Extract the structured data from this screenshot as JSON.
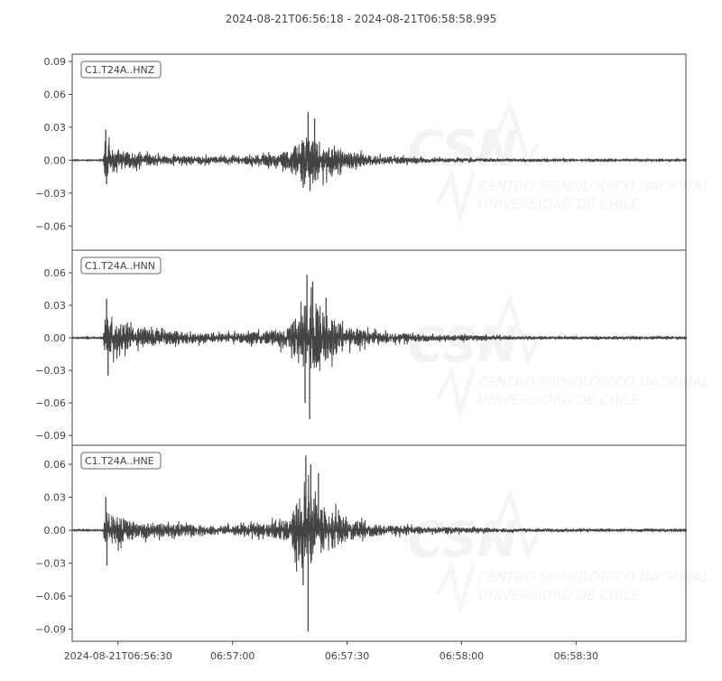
{
  "chart_data": {
    "type": "line",
    "title": "2024-08-21T06:56:18  -  2024-08-21T06:58:58.995",
    "x_start": "2024-08-21T06:56:18",
    "x_end": "2024-08-21T06:58:58.995",
    "x_duration_s": 160.995,
    "x_ticks": [
      {
        "t": 12,
        "label": "2024-08-21T06:56:30"
      },
      {
        "t": 42,
        "label": "06:57:00"
      },
      {
        "t": 72,
        "label": "06:57:30"
      },
      {
        "t": 102,
        "label": "06:58:00"
      },
      {
        "t": 132,
        "label": "06:58:30"
      }
    ],
    "grid": false,
    "line_color": "#444444",
    "watermark": {
      "logo": "CSN",
      "line1": "CENTRO SISMOLÓGICO NACIONAL",
      "line2": "UNIVERSIDAD DE CHILE"
    },
    "series": [
      {
        "name": "C1.T24A..HNZ",
        "ylim": [
          -0.082,
          0.0966
        ],
        "y_ticks": [
          {
            "v": 0.09,
            "label": "0.09"
          },
          {
            "v": 0.06,
            "label": "0.06"
          },
          {
            "v": 0.03,
            "label": "0.03"
          },
          {
            "v": 0.0,
            "label": "0.00"
          },
          {
            "v": -0.03,
            "label": "−0.03"
          },
          {
            "v": -0.06,
            "label": "−0.06"
          }
        ],
        "envelope": [
          [
            0,
            0.0005
          ],
          [
            8,
            0.0005
          ],
          [
            8.6,
            0.02
          ],
          [
            10,
            0.012
          ],
          [
            15,
            0.007
          ],
          [
            25,
            0.004
          ],
          [
            40,
            0.003
          ],
          [
            50,
            0.005
          ],
          [
            57,
            0.008
          ],
          [
            60,
            0.02
          ],
          [
            62,
            0.024
          ],
          [
            66,
            0.014
          ],
          [
            72,
            0.008
          ],
          [
            80,
            0.004
          ],
          [
            95,
            0.002
          ],
          [
            120,
            0.001
          ],
          [
            161,
            0.0006
          ]
        ],
        "peaks": [
          [
            8.8,
            0.028
          ],
          [
            9.0,
            -0.022
          ],
          [
            61.8,
            0.044
          ],
          [
            62.3,
            -0.028
          ],
          [
            63.5,
            0.038
          ],
          [
            60.5,
            -0.025
          ]
        ]
      },
      {
        "name": "C1.T24A..HNN",
        "ylim": [
          -0.099,
          0.0808
        ],
        "y_ticks": [
          {
            "v": 0.06,
            "label": "0.06"
          },
          {
            "v": 0.03,
            "label": "0.03"
          },
          {
            "v": 0.0,
            "label": "0.00"
          },
          {
            "v": -0.03,
            "label": "−0.03"
          },
          {
            "v": -0.06,
            "label": "−0.06"
          },
          {
            "v": -0.09,
            "label": "−0.09"
          }
        ],
        "envelope": [
          [
            0,
            0.0006
          ],
          [
            8,
            0.0006
          ],
          [
            8.6,
            0.022
          ],
          [
            10,
            0.016
          ],
          [
            15,
            0.01
          ],
          [
            25,
            0.006
          ],
          [
            40,
            0.004
          ],
          [
            50,
            0.006
          ],
          [
            57,
            0.01
          ],
          [
            60,
            0.03
          ],
          [
            63,
            0.032
          ],
          [
            67,
            0.02
          ],
          [
            72,
            0.01
          ],
          [
            80,
            0.005
          ],
          [
            95,
            0.003
          ],
          [
            120,
            0.0015
          ],
          [
            161,
            0.0008
          ]
        ],
        "peaks": [
          [
            9.0,
            0.036
          ],
          [
            9.4,
            -0.035
          ],
          [
            61.5,
            0.058
          ],
          [
            62.2,
            -0.075
          ],
          [
            63.0,
            0.052
          ],
          [
            61.0,
            -0.06
          ],
          [
            66.5,
            0.037
          ]
        ]
      },
      {
        "name": "C1.T24A..HNE",
        "ylim": [
          -0.101,
          0.0773
        ],
        "y_ticks": [
          {
            "v": 0.06,
            "label": "0.06"
          },
          {
            "v": 0.03,
            "label": "0.03"
          },
          {
            "v": 0.0,
            "label": "0.00"
          },
          {
            "v": -0.03,
            "label": "−0.03"
          },
          {
            "v": -0.06,
            "label": "−0.06"
          },
          {
            "v": -0.09,
            "label": "−0.09"
          }
        ],
        "envelope": [
          [
            0,
            0.0006
          ],
          [
            8,
            0.0006
          ],
          [
            8.6,
            0.02
          ],
          [
            10,
            0.014
          ],
          [
            15,
            0.009
          ],
          [
            25,
            0.006
          ],
          [
            40,
            0.004
          ],
          [
            50,
            0.006
          ],
          [
            57,
            0.01
          ],
          [
            60,
            0.034
          ],
          [
            63,
            0.03
          ],
          [
            67,
            0.02
          ],
          [
            72,
            0.01
          ],
          [
            80,
            0.005
          ],
          [
            95,
            0.003
          ],
          [
            120,
            0.0015
          ],
          [
            161,
            0.0008
          ]
        ],
        "peaks": [
          [
            8.8,
            0.03
          ],
          [
            9.1,
            -0.032
          ],
          [
            61.2,
            0.068
          ],
          [
            61.8,
            -0.092
          ],
          [
            62.5,
            0.06
          ],
          [
            60.5,
            -0.05
          ],
          [
            64.5,
            0.052
          ]
        ]
      }
    ]
  }
}
